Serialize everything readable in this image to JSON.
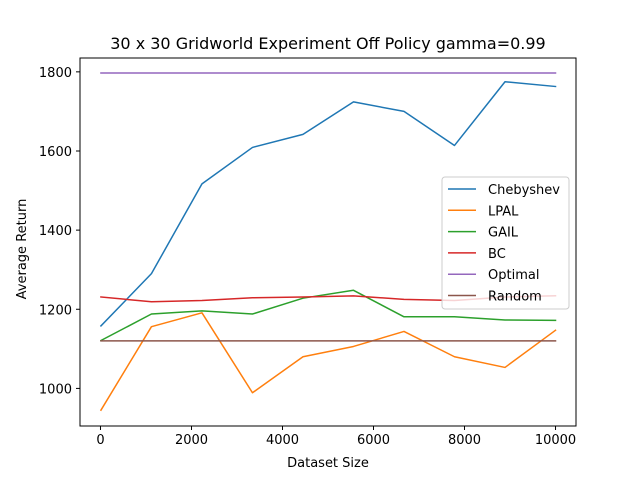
{
  "chart_data": {
    "type": "line",
    "title": "30 x 30 Gridworld Experiment Off Policy gamma=0.99",
    "xlabel": "Dataset Size",
    "ylabel": "Average Return",
    "xlim": [
      -450,
      10450
    ],
    "ylim": [
      905,
      1835
    ],
    "xticks": [
      0,
      2000,
      4000,
      6000,
      8000,
      10000
    ],
    "yticks": [
      1000,
      1200,
      1400,
      1600,
      1800
    ],
    "grid": false,
    "legend_position": "center-right",
    "x": [
      10,
      1120,
      2230,
      3340,
      4450,
      5560,
      6670,
      7780,
      8890,
      10000
    ],
    "series": [
      {
        "name": "Chebyshev",
        "color": "#1f77b4",
        "values": [
          1158,
          1290,
          1517,
          1609,
          1642,
          1724,
          1700,
          1614,
          1775,
          1763
        ]
      },
      {
        "name": "LPAL",
        "color": "#ff7f0e",
        "values": [
          945,
          1156,
          1191,
          989,
          1080,
          1106,
          1144,
          1080,
          1053,
          1147
        ]
      },
      {
        "name": "GAIL",
        "color": "#2ca02c",
        "values": [
          1121,
          1188,
          1196,
          1188,
          1228,
          1248,
          1181,
          1181,
          1173,
          1172
        ]
      },
      {
        "name": "BC",
        "color": "#d62728",
        "values": [
          1231,
          1219,
          1222,
          1229,
          1231,
          1234,
          1225,
          1222,
          1231,
          1234
        ]
      },
      {
        "name": "Optimal",
        "color": "#9467bd",
        "values": [
          1797,
          1797,
          1797,
          1797,
          1797,
          1797,
          1797,
          1797,
          1797,
          1797
        ]
      },
      {
        "name": "Random",
        "color": "#8c564b",
        "values": [
          1120,
          1120,
          1120,
          1120,
          1120,
          1120,
          1120,
          1120,
          1120,
          1120
        ]
      }
    ]
  }
}
